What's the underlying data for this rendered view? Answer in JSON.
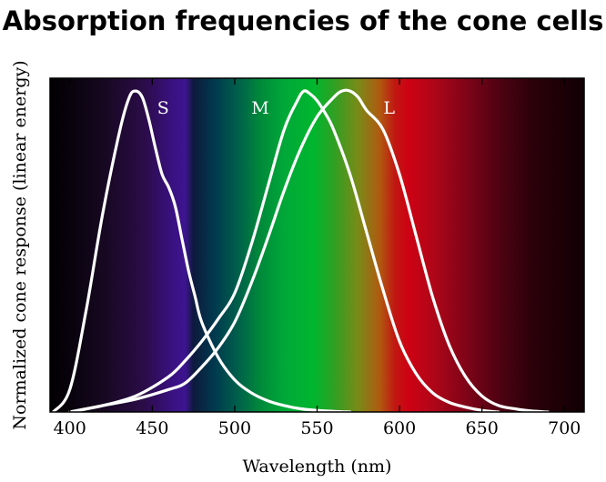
{
  "chart_data": {
    "type": "line",
    "title": "Absorption frequencies of the cone cells",
    "xlabel": "Wavelength (nm)",
    "ylabel": "Normalized cone response (linear energy)",
    "xlim": [
      388,
      712
    ],
    "ylim": [
      0,
      1.04
    ],
    "xticks": [
      400,
      450,
      500,
      550,
      600,
      650,
      700
    ],
    "grid": false,
    "legend": "none",
    "curve_color": "#ffffff",
    "background": "visible-spectrum",
    "spectrum_stops": [
      {
        "nm": 390,
        "color": "#020003"
      },
      {
        "nm": 420,
        "color": "#160820"
      },
      {
        "nm": 445,
        "color": "#2b0c48"
      },
      {
        "nm": 462,
        "color": "#3a1180"
      },
      {
        "nm": 470,
        "color": "#3d1490"
      },
      {
        "nm": 475,
        "color": "#0d1a3c"
      },
      {
        "nm": 488,
        "color": "#003a4e"
      },
      {
        "nm": 500,
        "color": "#005a4c"
      },
      {
        "nm": 515,
        "color": "#00883a"
      },
      {
        "nm": 530,
        "color": "#00a838"
      },
      {
        "nm": 548,
        "color": "#00b62e"
      },
      {
        "nm": 560,
        "color": "#2fa024"
      },
      {
        "nm": 575,
        "color": "#7a8a18"
      },
      {
        "nm": 588,
        "color": "#b05a10"
      },
      {
        "nm": 597,
        "color": "#c01812"
      },
      {
        "nm": 605,
        "color": "#ce0214"
      },
      {
        "nm": 620,
        "color": "#b00618"
      },
      {
        "nm": 640,
        "color": "#800418"
      },
      {
        "nm": 660,
        "color": "#500212"
      },
      {
        "nm": 680,
        "color": "#2c010a"
      },
      {
        "nm": 710,
        "color": "#120004"
      }
    ],
    "series": [
      {
        "name": "S",
        "x": [
          390,
          400,
          410,
          420,
          430,
          436,
          440,
          444,
          448,
          452,
          456,
          460,
          464,
          468,
          472,
          476,
          480,
          490,
          500,
          510,
          520,
          530,
          540,
          550,
          560,
          570
        ],
        "y": [
          0.0,
          0.07,
          0.32,
          0.62,
          0.87,
          0.98,
          1.0,
          0.98,
          0.91,
          0.82,
          0.74,
          0.7,
          0.64,
          0.54,
          0.44,
          0.36,
          0.28,
          0.17,
          0.1,
          0.06,
          0.035,
          0.02,
          0.01,
          0.005,
          0.002,
          0.0
        ]
      },
      {
        "name": "M",
        "x": [
          400,
          420,
          440,
          460,
          470,
          480,
          490,
          500,
          510,
          520,
          530,
          538,
          542,
          546,
          550,
          555,
          560,
          570,
          580,
          590,
          600,
          610,
          620,
          630,
          640,
          650,
          660
        ],
        "y": [
          0.0,
          0.02,
          0.05,
          0.11,
          0.16,
          0.22,
          0.29,
          0.37,
          0.52,
          0.7,
          0.88,
          0.97,
          1.0,
          0.99,
          0.97,
          0.93,
          0.88,
          0.74,
          0.56,
          0.38,
          0.22,
          0.12,
          0.06,
          0.03,
          0.015,
          0.005,
          0.0
        ]
      },
      {
        "name": "L",
        "x": [
          400,
          420,
          440,
          460,
          470,
          480,
          490,
          500,
          510,
          520,
          530,
          540,
          550,
          560,
          565,
          570,
          575,
          580,
          590,
          600,
          610,
          620,
          630,
          640,
          650,
          660,
          670,
          680,
          690
        ],
        "y": [
          0.0,
          0.02,
          0.04,
          0.07,
          0.09,
          0.14,
          0.2,
          0.28,
          0.4,
          0.54,
          0.69,
          0.82,
          0.92,
          0.98,
          1.0,
          1.0,
          0.98,
          0.94,
          0.88,
          0.74,
          0.55,
          0.36,
          0.21,
          0.11,
          0.05,
          0.02,
          0.01,
          0.003,
          0.0
        ]
      }
    ]
  }
}
